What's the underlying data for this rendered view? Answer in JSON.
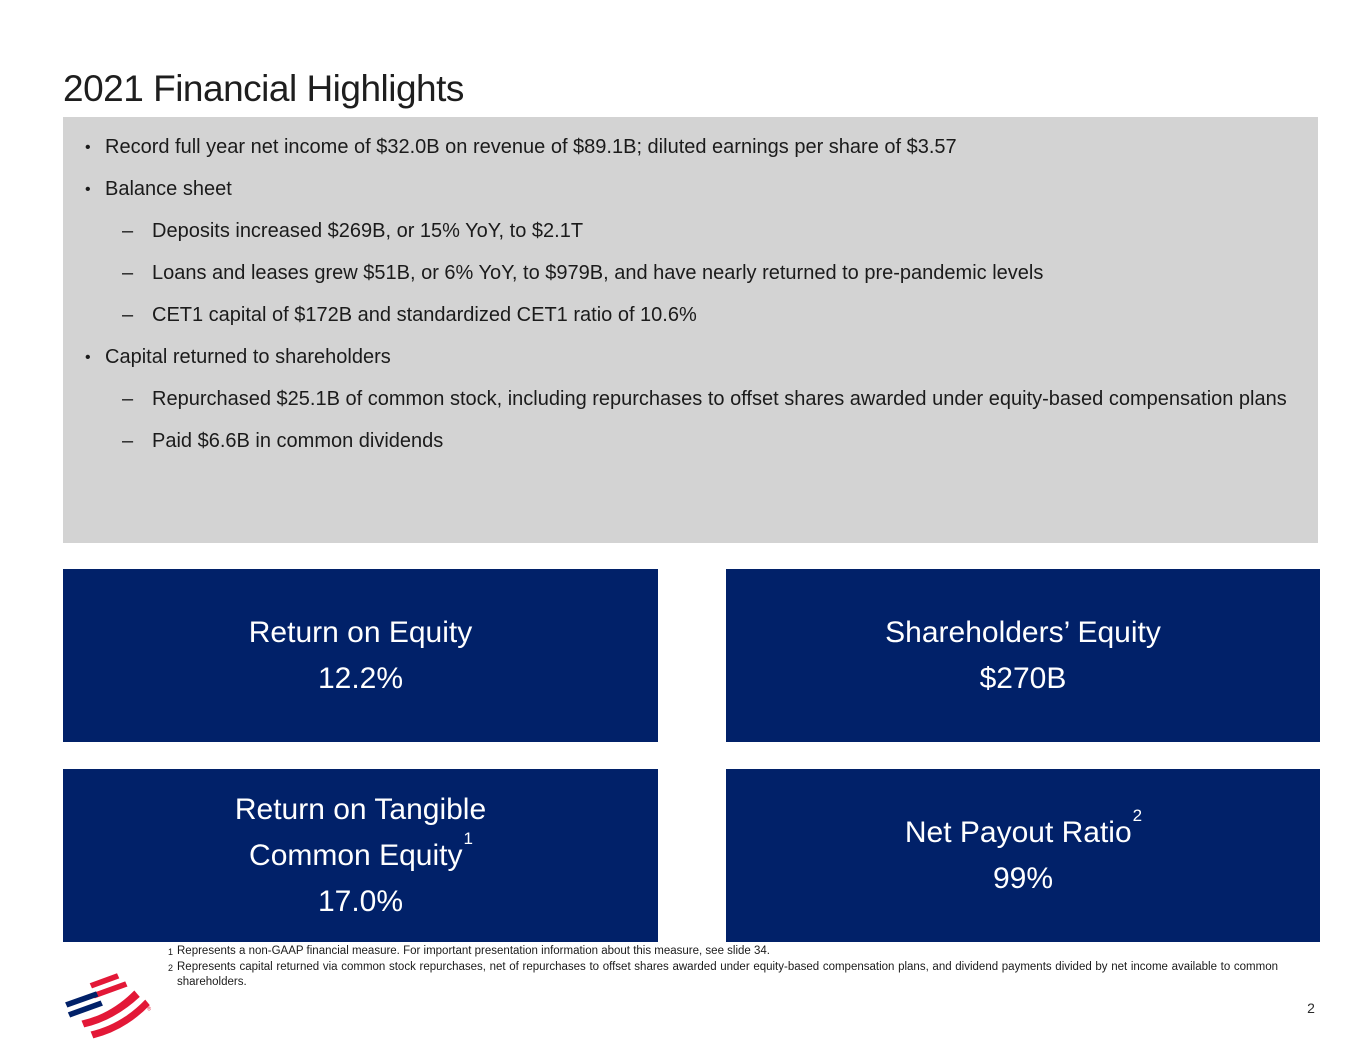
{
  "slide": {
    "title": "2021 Financial Highlights",
    "page_number": "2"
  },
  "highlights": {
    "bullets": [
      {
        "level": 1,
        "text": "Record full year net income of $32.0B on revenue of $89.1B; diluted earnings per share of $3.57"
      },
      {
        "level": 1,
        "text": "Balance sheet"
      },
      {
        "level": 2,
        "text": "Deposits increased $269B, or 15% YoY, to $2.1T"
      },
      {
        "level": 2,
        "text": "Loans and leases grew $51B, or 6% YoY, to $979B, and have nearly returned to pre-pandemic levels"
      },
      {
        "level": 2,
        "text": "CET1 capital of $172B and standardized CET1 ratio of 10.6%"
      },
      {
        "level": 1,
        "text": "Capital returned to shareholders"
      },
      {
        "level": 2,
        "text": "Repurchased $25.1B of common stock, including repurchases to offset shares awarded under equity-based compensation plans"
      },
      {
        "level": 2,
        "text": "Paid $6.6B in common dividends"
      }
    ]
  },
  "metric_boxes": [
    {
      "id": "return-on-equity",
      "lines": [
        {
          "text": "Return on Equity",
          "sup": ""
        }
      ],
      "value": "12.2%"
    },
    {
      "id": "shareholders-equity",
      "lines": [
        {
          "text": "Shareholders’ Equity",
          "sup": ""
        }
      ],
      "value": "$270B"
    },
    {
      "id": "return-on-tangible-common-equity",
      "lines": [
        {
          "text": "Return on Tangible",
          "sup": ""
        },
        {
          "text": "Common Equity",
          "sup": "1"
        }
      ],
      "value": "17.0%"
    },
    {
      "id": "net-payout-ratio",
      "lines": [
        {
          "text": "Net Payout Ratio",
          "sup": "2"
        }
      ],
      "value": "99%"
    }
  ],
  "footnotes": [
    {
      "marker": "1",
      "text": "Represents a non-GAAP financial measure. For important presentation information about this measure, see slide 34."
    },
    {
      "marker": "2",
      "text": "Represents capital returned via common stock repurchases, net of repurchases to offset shares awarded under equity-based compensation plans, and dividend payments divided by net income available to common shareholders."
    }
  ],
  "logo": {
    "registered_mark": "®"
  },
  "colors": {
    "navy": "#012169",
    "logo_red": "#e31837",
    "gray_panel": "#d3d3d3",
    "text_dark": "#1b1b1b"
  }
}
